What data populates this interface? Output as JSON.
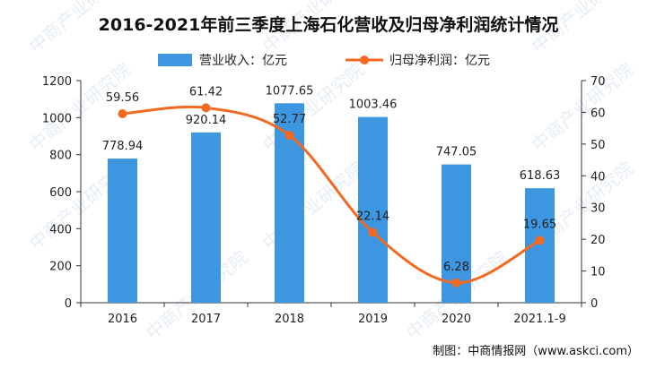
{
  "chart_data": {
    "type": "bar",
    "title": "2016-2021年前三季度上海石化营收及归母净利润统计情况",
    "categories": [
      "2016",
      "2017",
      "2018",
      "2019",
      "2020",
      "2021.1-9"
    ],
    "series": [
      {
        "name": "营业收入：亿元",
        "type": "bar",
        "axis": "left",
        "color": "#3d96e0",
        "values": [
          778.94,
          920.14,
          1077.65,
          1003.46,
          747.05,
          618.63
        ],
        "labels": [
          "778.94",
          "920.14",
          "1077.65",
          "1003.46",
          "747.05",
          "618.63"
        ]
      },
      {
        "name": "归母净利润：亿元",
        "type": "line",
        "axis": "right",
        "color": "#f26a21",
        "values": [
          59.56,
          61.42,
          52.77,
          22.14,
          6.28,
          19.65
        ],
        "labels": [
          "59.56",
          "61.42",
          "52.77",
          "22.14",
          "6.28",
          "19.65"
        ]
      }
    ],
    "y_left": {
      "ylim": [
        0,
        1200
      ],
      "ticks": [
        0,
        200,
        400,
        600,
        800,
        1000,
        1200
      ],
      "tick_labels": [
        "0",
        "200",
        "400",
        "600",
        "800",
        "1000",
        "1200"
      ]
    },
    "y_right": {
      "ylim": [
        0,
        70
      ],
      "ticks": [
        0,
        10,
        20,
        30,
        40,
        50,
        60,
        70
      ],
      "tick_labels": [
        "0",
        "10",
        "20",
        "30",
        "40",
        "50",
        "60",
        "70"
      ]
    },
    "legend_position": "top",
    "grid": false,
    "source": "制图：中商情报网（www.askci.com）",
    "watermark": "中商产业研究院"
  }
}
